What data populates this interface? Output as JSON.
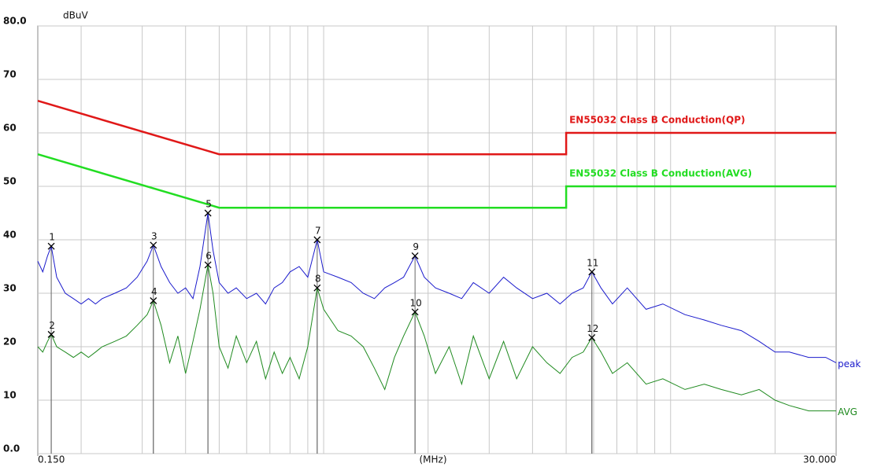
{
  "chart_data": {
    "type": "line",
    "ylabel": "dBuV",
    "xlabel": "(MHz)",
    "xscale": "log",
    "xlim": [
      0.15,
      30
    ],
    "xticks": [
      {
        "value": 0.15,
        "label": "0.150"
      },
      {
        "value": 30,
        "label": "30.000"
      }
    ],
    "xgrid": [
      0.2,
      0.3,
      0.4,
      0.5,
      0.6,
      0.7,
      0.8,
      0.9,
      1,
      2,
      3,
      4,
      5,
      6,
      7,
      8,
      9,
      10,
      20
    ],
    "ylim": [
      0,
      80
    ],
    "yticks": [
      {
        "value": 0,
        "label": "0.0"
      },
      10,
      20,
      30,
      40,
      50,
      60,
      70,
      {
        "value": 80,
        "label": "80.0"
      }
    ],
    "grid": true,
    "x": [
      0.15,
      0.155,
      0.16,
      0.164,
      0.17,
      0.18,
      0.19,
      0.2,
      0.21,
      0.22,
      0.23,
      0.25,
      0.27,
      0.29,
      0.31,
      0.323,
      0.34,
      0.36,
      0.38,
      0.4,
      0.42,
      0.44,
      0.464,
      0.48,
      0.5,
      0.53,
      0.56,
      0.6,
      0.64,
      0.68,
      0.72,
      0.76,
      0.8,
      0.85,
      0.9,
      0.958,
      1.0,
      1.1,
      1.2,
      1.3,
      1.4,
      1.5,
      1.6,
      1.7,
      1.834,
      1.95,
      2.1,
      2.3,
      2.5,
      2.7,
      3.0,
      3.3,
      3.6,
      4.0,
      4.4,
      4.8,
      5.2,
      5.6,
      5.93,
      6.3,
      6.8,
      7.5,
      8.5,
      9.5,
      11,
      12.5,
      14,
      16,
      18,
      20,
      22,
      25,
      28,
      30
    ],
    "series": [
      {
        "name": "peak",
        "color": "#1a1acc",
        "values": [
          36,
          34,
          37,
          38.8,
          33,
          30,
          29,
          28,
          29,
          28,
          29,
          30,
          31,
          33,
          36,
          39,
          35,
          32,
          30,
          31,
          29,
          35,
          45,
          38,
          32,
          30,
          31,
          29,
          30,
          28,
          31,
          32,
          34,
          35,
          33,
          40,
          34,
          33,
          32,
          30,
          29,
          31,
          32,
          33,
          37,
          33,
          31,
          30,
          29,
          32,
          30,
          33,
          31,
          29,
          30,
          28,
          30,
          31,
          34,
          31,
          28,
          31,
          27,
          28,
          26,
          25,
          24,
          23,
          21,
          19,
          19,
          18,
          18,
          17
        ]
      },
      {
        "name": "AVG",
        "color": "#1f8a1f",
        "values": [
          20,
          19,
          21,
          22.3,
          20,
          19,
          18,
          19,
          18,
          19,
          20,
          21,
          22,
          24,
          26,
          28.6,
          24,
          17,
          22,
          15,
          21,
          27,
          35.3,
          30,
          20,
          16,
          22,
          17,
          21,
          14,
          19,
          15,
          18,
          14,
          20,
          31,
          27,
          23,
          22,
          20,
          16,
          12,
          18,
          22,
          26.5,
          22,
          15,
          20,
          13,
          22,
          14,
          21,
          14,
          20,
          17,
          15,
          18,
          19,
          21.7,
          19,
          15,
          17,
          13,
          14,
          12,
          13,
          12,
          11,
          12,
          10,
          9,
          8,
          8,
          8
        ]
      }
    ],
    "limits": [
      {
        "name": "EN55032 Class B Conduction(QP)",
        "color": "#e01818",
        "x": [
          0.15,
          0.5,
          5,
          5,
          30
        ],
        "values": [
          66,
          56,
          56,
          60,
          60
        ]
      },
      {
        "name": "EN55032 Class B Conduction(AVG)",
        "color": "#22dd22",
        "x": [
          0.15,
          0.5,
          5,
          5,
          30
        ],
        "values": [
          56,
          46,
          46,
          50,
          50
        ]
      }
    ],
    "markers": [
      {
        "label": "1",
        "x": 0.164,
        "value": 38.8
      },
      {
        "label": "2",
        "x": 0.164,
        "value": 22.3
      },
      {
        "label": "3",
        "x": 0.323,
        "value": 39
      },
      {
        "label": "4",
        "x": 0.323,
        "value": 28.6
      },
      {
        "label": "5",
        "x": 0.464,
        "value": 45
      },
      {
        "label": "6",
        "x": 0.464,
        "value": 35.3
      },
      {
        "label": "7",
        "x": 0.958,
        "value": 40
      },
      {
        "label": "8",
        "x": 0.958,
        "value": 31
      },
      {
        "label": "9",
        "x": 1.834,
        "value": 37
      },
      {
        "label": "10",
        "x": 1.834,
        "value": 26.5
      },
      {
        "label": "11",
        "x": 5.93,
        "value": 34
      },
      {
        "label": "12",
        "x": 5.93,
        "value": 21.7
      }
    ]
  }
}
